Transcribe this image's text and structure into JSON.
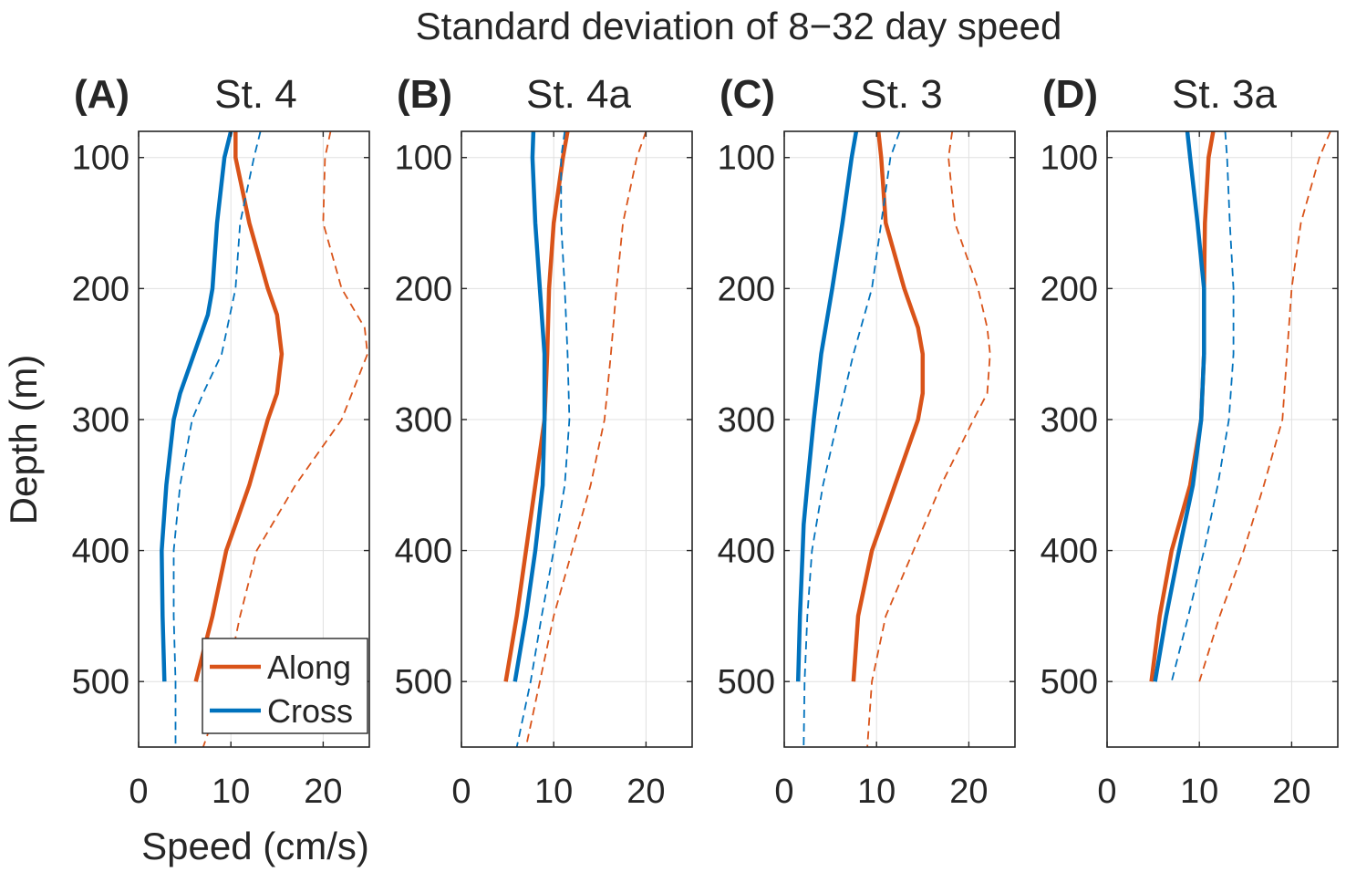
{
  "chart_data": {
    "type": "line",
    "title": "Standard deviation of 8−32 day speed",
    "xlabel": "Speed (cm/s)",
    "ylabel": "Depth (m)",
    "xlim": [
      0,
      25
    ],
    "ylim": [
      550,
      80
    ],
    "xticks": [
      0,
      10,
      20
    ],
    "yticks": [
      100,
      200,
      300,
      400,
      500
    ],
    "grid": true,
    "legend": {
      "location": "bottom-right of panel A",
      "entries": [
        {
          "label": "Along",
          "color": "#D95319"
        },
        {
          "label": "Cross",
          "color": "#0072BD"
        }
      ]
    },
    "colors": {
      "along": "#D95319",
      "cross": "#0072BD",
      "grid": "#e0e0e0",
      "axis": "#262626"
    },
    "panels": [
      {
        "tag": "(A)",
        "station": "St. 4",
        "series": [
          {
            "name": "Along",
            "style": "solid",
            "depth": [
              80,
              100,
              150,
              200,
              220,
              250,
              280,
              300,
              350,
              380,
              400,
              450,
              500
            ],
            "speed": [
              10.5,
              10.5,
              12,
              14,
              15,
              15.5,
              15,
              14,
              12,
              10.5,
              9.5,
              8,
              6.2
            ]
          },
          {
            "name": "Cross",
            "style": "solid",
            "depth": [
              80,
              100,
              150,
              200,
              220,
              250,
              280,
              300,
              350,
              400,
              450,
              500
            ],
            "speed": [
              10,
              9.3,
              8.5,
              8,
              7.5,
              6,
              4.5,
              3.8,
              3,
              2.5,
              2.6,
              2.8
            ]
          },
          {
            "name": "Along upper",
            "style": "dashed",
            "depth": [
              80,
              100,
              150,
              200,
              230,
              250,
              300,
              350,
              400,
              450,
              500,
              550
            ],
            "speed": [
              20.8,
              20.2,
              20,
              22,
              24.5,
              24.8,
              22,
              17,
              12.8,
              11,
              9.5,
              7
            ]
          },
          {
            "name": "Cross upper",
            "style": "dashed",
            "depth": [
              80,
              100,
              150,
              200,
              250,
              280,
              300,
              350,
              400,
              450,
              500,
              550
            ],
            "speed": [
              13.2,
              12.5,
              11,
              10.5,
              9,
              7,
              5.8,
              4.5,
              3.8,
              3.8,
              4,
              4
            ]
          }
        ]
      },
      {
        "tag": "(B)",
        "station": "St. 4a",
        "series": [
          {
            "name": "Along",
            "style": "solid",
            "depth": [
              80,
              100,
              150,
              200,
              250,
              300,
              350,
              400,
              450,
              500
            ],
            "speed": [
              11.5,
              11,
              10,
              9.5,
              9.3,
              9,
              8,
              7,
              6,
              4.8
            ]
          },
          {
            "name": "Cross",
            "style": "solid",
            "depth": [
              80,
              100,
              150,
              200,
              250,
              300,
              350,
              400,
              450,
              500
            ],
            "speed": [
              7.8,
              7.7,
              8,
              8.5,
              9,
              9,
              8.8,
              8,
              7,
              5.8
            ]
          },
          {
            "name": "Along upper",
            "style": "dashed",
            "depth": [
              80,
              100,
              150,
              200,
              250,
              300,
              350,
              400,
              450,
              500,
              550
            ],
            "speed": [
              20,
              19,
              17.5,
              16.8,
              16.2,
              15.5,
              14,
              12,
              10,
              8.5,
              7
            ]
          },
          {
            "name": "Cross upper",
            "style": "dashed",
            "depth": [
              80,
              100,
              150,
              200,
              250,
              300,
              350,
              400,
              450,
              500,
              550
            ],
            "speed": [
              11.2,
              10.8,
              10.8,
              11.2,
              11.5,
              11.7,
              11.2,
              10,
              8.7,
              7.5,
              6
            ]
          }
        ]
      },
      {
        "tag": "(C)",
        "station": "St. 3",
        "series": [
          {
            "name": "Along",
            "style": "solid",
            "depth": [
              80,
              100,
              150,
              200,
              230,
              250,
              280,
              300,
              350,
              380,
              400,
              450,
              500
            ],
            "speed": [
              10.2,
              10.5,
              11,
              13,
              14.5,
              15,
              15,
              14.5,
              12,
              10.5,
              9.5,
              8,
              7.5
            ]
          },
          {
            "name": "Cross",
            "style": "solid",
            "depth": [
              80,
              100,
              150,
              200,
              250,
              300,
              350,
              380,
              400,
              450,
              500
            ],
            "speed": [
              7.8,
              7.3,
              6.3,
              5.2,
              4,
              3.2,
              2.5,
              2.1,
              2,
              1.7,
              1.5
            ]
          },
          {
            "name": "Along upper",
            "style": "dashed",
            "depth": [
              80,
              100,
              150,
              200,
              230,
              250,
              280,
              300,
              350,
              400,
              450,
              500,
              550
            ],
            "speed": [
              18.2,
              17.8,
              18.5,
              21,
              22,
              22.3,
              22,
              20.5,
              17,
              14,
              11,
              9.5,
              9
            ]
          },
          {
            "name": "Cross upper",
            "style": "dashed",
            "depth": [
              80,
              100,
              150,
              200,
              250,
              300,
              350,
              400,
              450,
              500,
              550
            ],
            "speed": [
              12.5,
              11.5,
              10.5,
              9.5,
              7.5,
              5.8,
              4.2,
              3,
              2.5,
              2.2,
              2.1
            ]
          }
        ]
      },
      {
        "tag": "(D)",
        "station": "St. 3a",
        "series": [
          {
            "name": "Along",
            "style": "solid",
            "depth": [
              80,
              100,
              150,
              200,
              250,
              300,
              350,
              400,
              450,
              500
            ],
            "speed": [
              11.5,
              11,
              10.6,
              10.5,
              10.5,
              10.2,
              9,
              7,
              5.7,
              4.8
            ]
          },
          {
            "name": "Cross",
            "style": "solid",
            "depth": [
              80,
              100,
              150,
              200,
              250,
              300,
              350,
              400,
              450,
              500
            ],
            "speed": [
              8.7,
              9,
              9.8,
              10.5,
              10.5,
              10.2,
              9.3,
              7.8,
              6.4,
              5.2
            ]
          },
          {
            "name": "Along upper",
            "style": "dashed",
            "depth": [
              80,
              100,
              150,
              200,
              250,
              300,
              350,
              400,
              450,
              500
            ],
            "speed": [
              24.2,
              23,
              21,
              20,
              19.5,
              19,
              17,
              14.8,
              12.2,
              10
            ]
          },
          {
            "name": "Cross upper",
            "style": "dashed",
            "depth": [
              80,
              100,
              150,
              200,
              250,
              300,
              350,
              400,
              450,
              500
            ],
            "speed": [
              12.8,
              13,
              13.3,
              13.7,
              13.7,
              13.2,
              12,
              10.5,
              8.8,
              7
            ]
          }
        ]
      }
    ]
  }
}
